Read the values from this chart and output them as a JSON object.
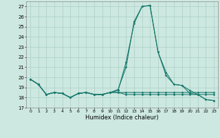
{
  "title": "",
  "xlabel": "Humidex (Indice chaleur)",
  "xlim": [
    -0.5,
    23.5
  ],
  "ylim": [
    17,
    27.5
  ],
  "yticks": [
    17,
    18,
    19,
    20,
    21,
    22,
    23,
    24,
    25,
    26,
    27
  ],
  "xticks": [
    0,
    1,
    2,
    3,
    4,
    5,
    6,
    7,
    8,
    9,
    10,
    11,
    12,
    13,
    14,
    15,
    16,
    17,
    18,
    19,
    20,
    21,
    22,
    23
  ],
  "background_color": "#cde8e0",
  "line_color": "#1a7a6e",
  "grid_color": "#aacfc6",
  "lines": [
    [
      19.8,
      19.3,
      18.3,
      18.5,
      18.4,
      18.0,
      18.4,
      18.5,
      18.3,
      18.3,
      18.5,
      18.7,
      21.5,
      25.3,
      27.0,
      27.1,
      22.5,
      20.2,
      19.3,
      19.2,
      18.4,
      18.3,
      17.8,
      17.7
    ],
    [
      19.8,
      19.3,
      18.3,
      18.5,
      18.4,
      18.0,
      18.4,
      18.5,
      18.3,
      18.3,
      18.5,
      18.8,
      21.0,
      25.5,
      27.0,
      27.1,
      22.5,
      20.5,
      19.3,
      19.2,
      18.7,
      18.3,
      17.8,
      17.7
    ],
    [
      19.8,
      19.3,
      18.3,
      18.5,
      18.4,
      18.0,
      18.4,
      18.5,
      18.3,
      18.3,
      18.5,
      18.5,
      18.5,
      18.5,
      18.5,
      18.5,
      18.5,
      18.5,
      18.5,
      18.5,
      18.5,
      18.5,
      18.5,
      18.5
    ],
    [
      19.8,
      19.3,
      18.3,
      18.5,
      18.4,
      18.0,
      18.4,
      18.5,
      18.3,
      18.3,
      18.5,
      18.5,
      18.3,
      18.3,
      18.3,
      18.3,
      18.3,
      18.3,
      18.3,
      18.3,
      18.3,
      18.3,
      18.3,
      18.3
    ]
  ]
}
